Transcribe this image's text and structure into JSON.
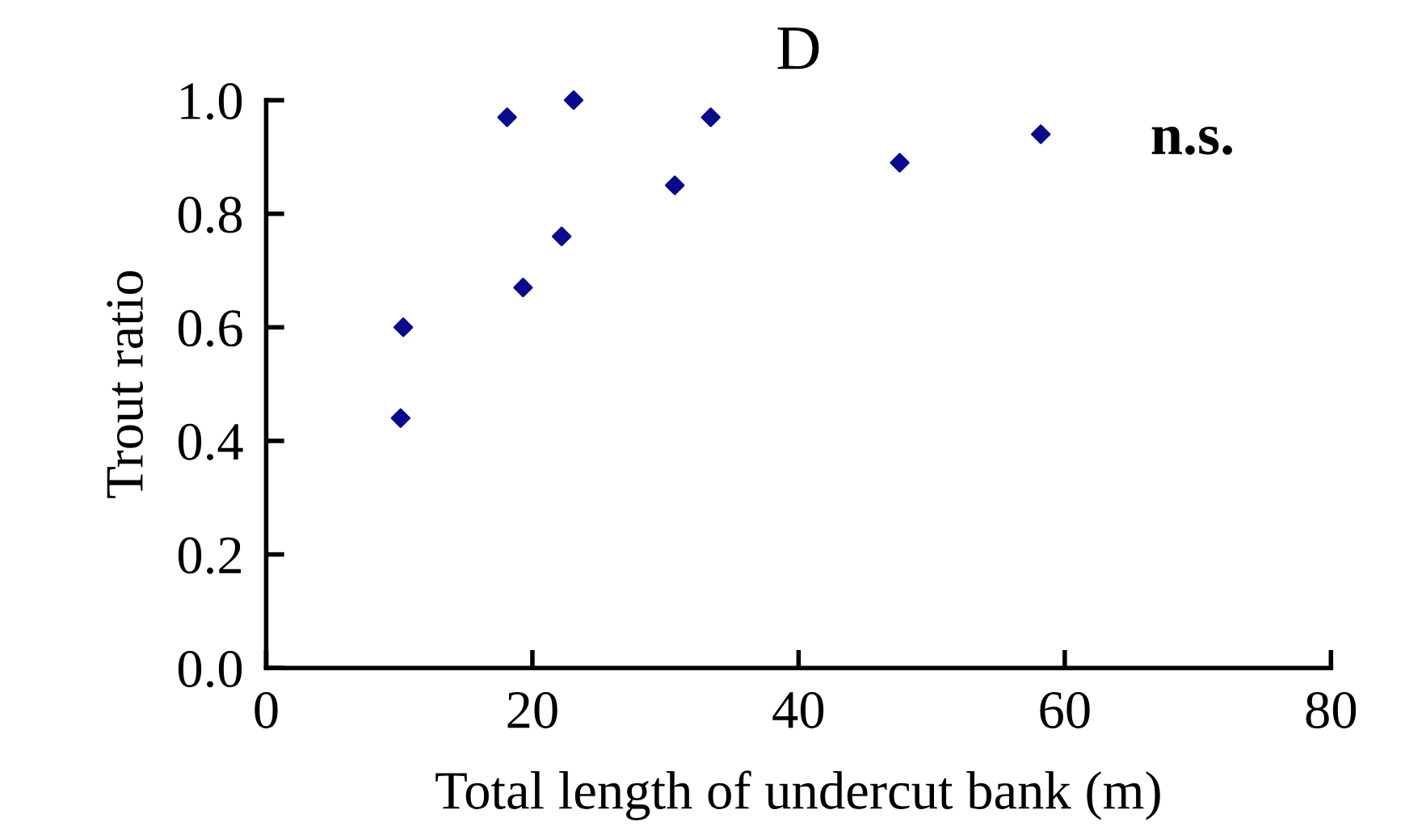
{
  "chart_data": {
    "type": "scatter",
    "title": "D",
    "xlabel": "Total length of undercut bank (m)",
    "ylabel": "Trout ratio",
    "x": [
      10.1,
      10.3,
      18.1,
      19.3,
      22.2,
      23.1,
      30.7,
      33.4,
      47.6,
      58.2
    ],
    "series": [
      {
        "color": "#0a0a8c",
        "values": [
          0.44,
          0.6,
          0.97,
          0.67,
          0.76,
          1.0,
          0.85,
          0.97,
          0.89,
          0.94
        ]
      }
    ],
    "xlim": [
      0,
      80
    ],
    "xticks": [
      0,
      20,
      40,
      60,
      80
    ],
    "ylim": [
      0,
      1.0
    ],
    "yticks": [
      {
        "value": 0,
        "label": "0.0"
      },
      {
        "value": 0.2,
        "label": "0.2"
      },
      {
        "value": 0.4,
        "label": "0.4"
      },
      {
        "value": 0.6,
        "label": "0.6"
      },
      {
        "value": 0.8,
        "label": "0.8"
      },
      {
        "value": 1.0,
        "label": "1.0"
      }
    ],
    "marker": "diamond",
    "grid": false,
    "legend": false,
    "annotations": [
      "n.s."
    ]
  }
}
